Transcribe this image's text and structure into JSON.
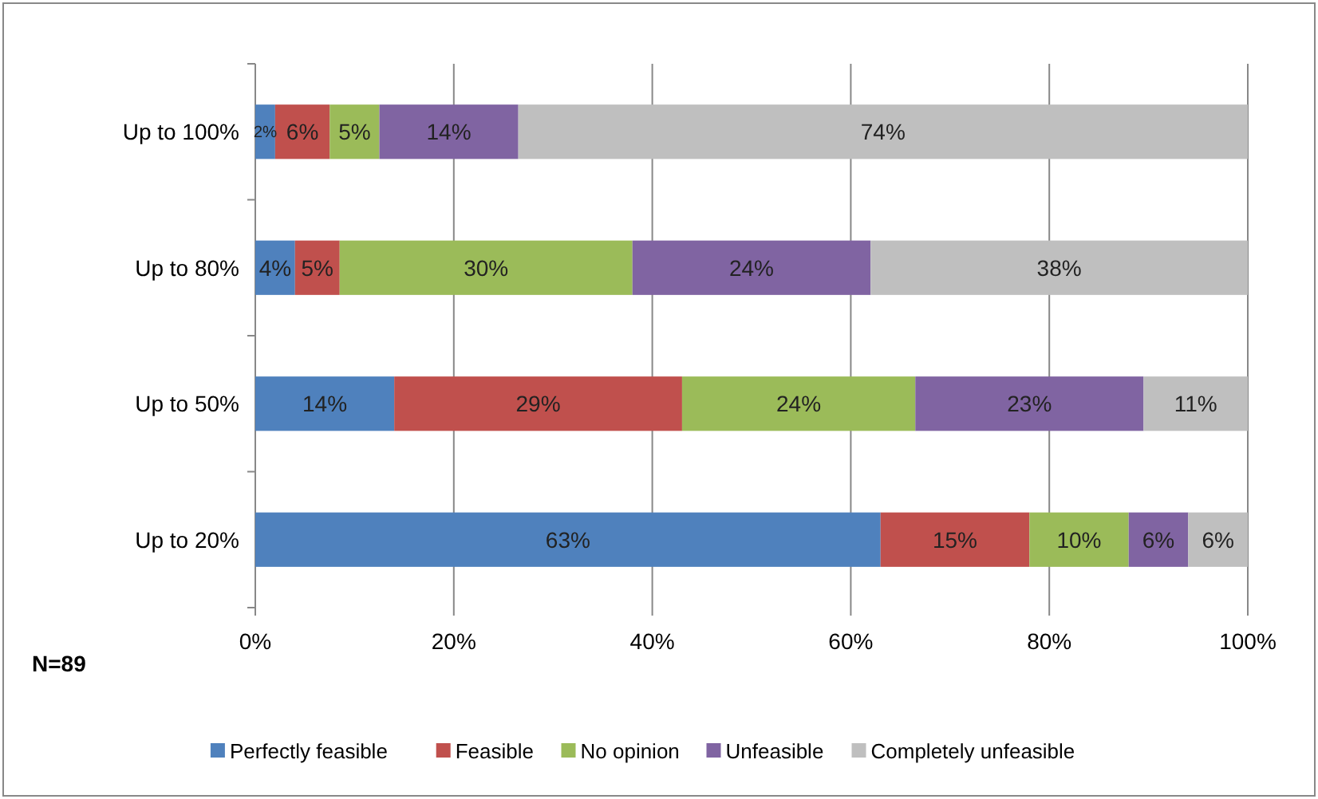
{
  "chart_data": {
    "type": "bar",
    "orientation": "horizontal",
    "stacked": true,
    "categories": [
      "Up to 100%",
      "Up to 80%",
      "Up to 50%",
      "Up to 20%"
    ],
    "series": [
      {
        "name": "Perfectly feasible",
        "color": "#4f81bd",
        "values": [
          2,
          4,
          14,
          63
        ],
        "value_labels": [
          "2%",
          "4%",
          "14%",
          "63%"
        ]
      },
      {
        "name": "Feasible",
        "color": "#c0504d",
        "values": [
          5.5,
          4.5,
          29,
          15
        ],
        "value_labels": [
          "6%",
          "5%",
          "29%",
          "15%"
        ]
      },
      {
        "name": "No opinion",
        "color": "#9bbb59",
        "values": [
          5,
          29.5,
          23.5,
          10
        ],
        "value_labels": [
          "5%",
          "30%",
          "24%",
          "10%"
        ]
      },
      {
        "name": "Unfeasible",
        "color": "#8064a2",
        "values": [
          14,
          24,
          23,
          6
        ],
        "value_labels": [
          "14%",
          "24%",
          "23%",
          "6%"
        ]
      },
      {
        "name": "Completely unfeasible",
        "color": "#bfbfbf",
        "values": [
          73.5,
          38,
          10.5,
          6
        ],
        "value_labels": [
          "74%",
          "38%",
          "11%",
          "6%"
        ]
      }
    ],
    "xlim": [
      0,
      100
    ],
    "xticks": [
      {
        "value": 0,
        "label": "0%"
      },
      {
        "value": 20,
        "label": "20%"
      },
      {
        "value": 40,
        "label": "40%"
      },
      {
        "value": 60,
        "label": "60%"
      },
      {
        "value": 80,
        "label": "80%"
      },
      {
        "value": 100,
        "label": "100%"
      }
    ],
    "grid": "x",
    "legend": "bottom",
    "annotations": [
      "N=89"
    ]
  }
}
